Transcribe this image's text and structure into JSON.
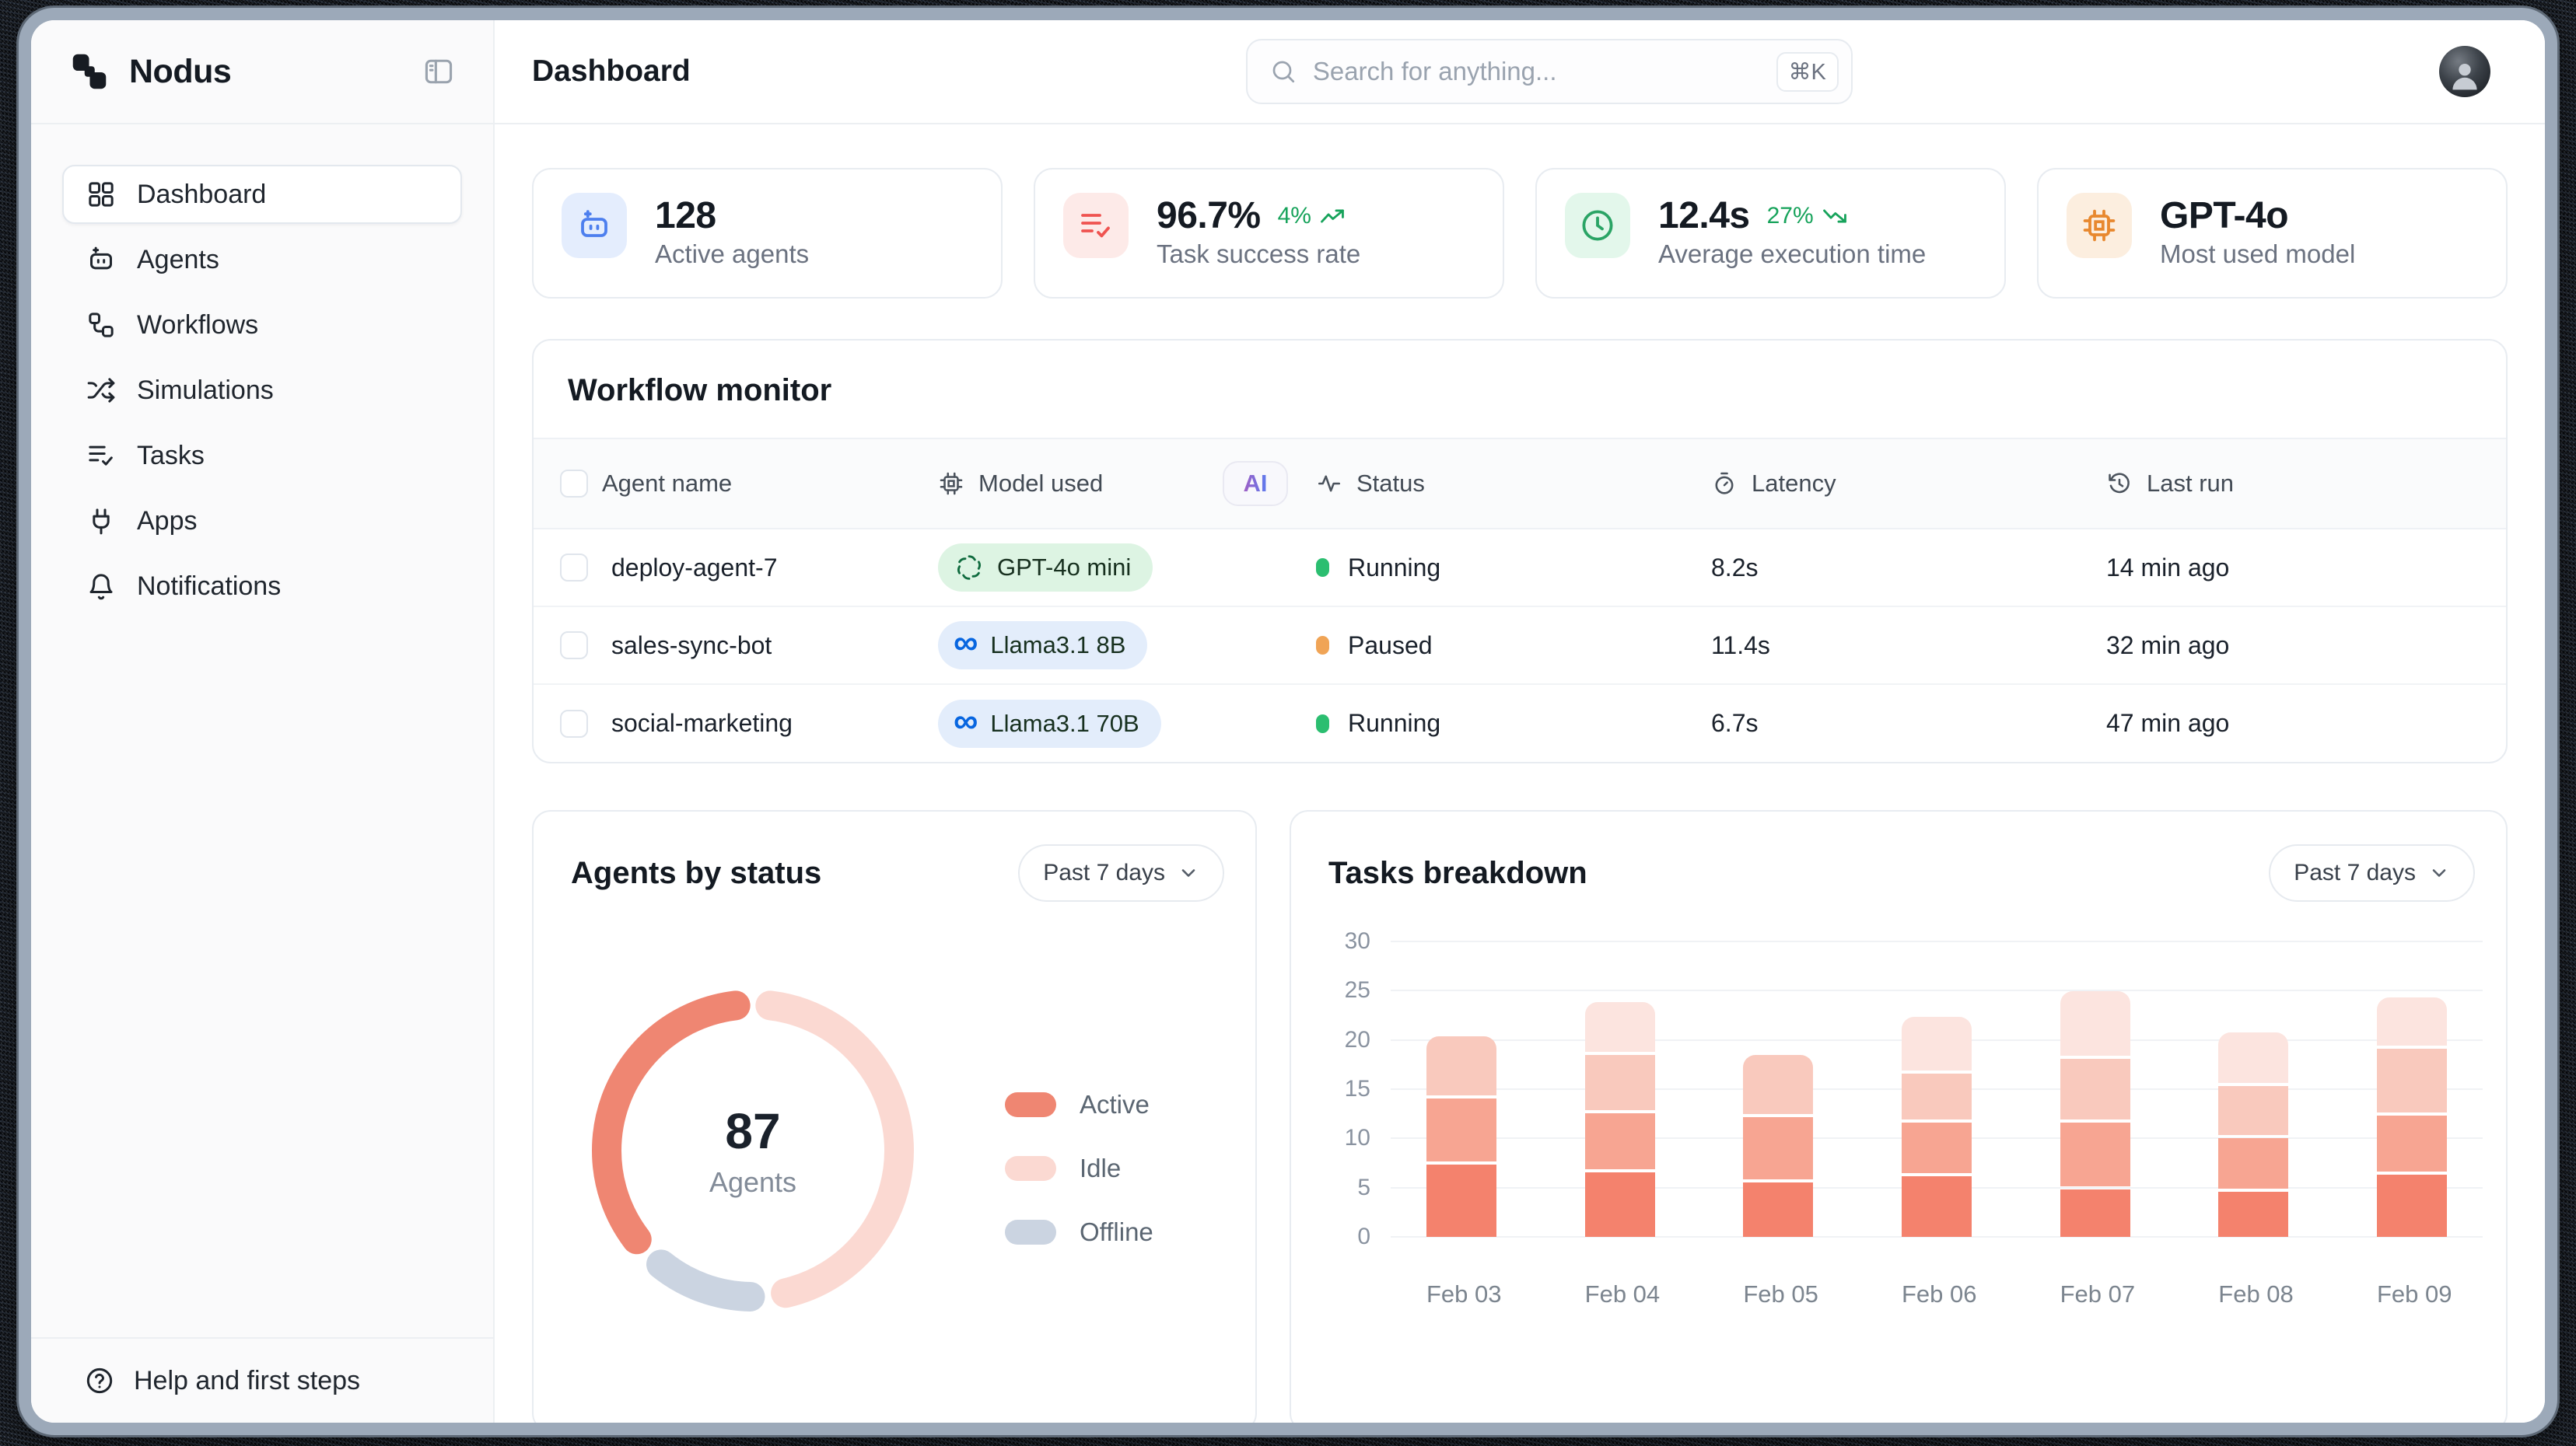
{
  "brand": {
    "name": "Nodus",
    "logo_icon": "nodus-logo-icon",
    "collapse_icon": "sidebar-toggle-icon"
  },
  "header": {
    "title": "Dashboard",
    "search": {
      "placeholder": "Search for anything...",
      "shortcut": "⌘K",
      "icon": "search-icon"
    },
    "avatar": "user-avatar"
  },
  "sidebar": {
    "items": [
      {
        "label": "Dashboard",
        "icon": "grid-icon",
        "active": true
      },
      {
        "label": "Agents",
        "icon": "bot-icon",
        "active": false
      },
      {
        "label": "Workflows",
        "icon": "workflow-nodes-icon",
        "active": false
      },
      {
        "label": "Simulations",
        "icon": "shuffle-icon",
        "active": false
      },
      {
        "label": "Tasks",
        "icon": "list-check-icon",
        "active": false
      },
      {
        "label": "Apps",
        "icon": "plug-icon",
        "active": false
      },
      {
        "label": "Notifications",
        "icon": "bell-icon",
        "active": false
      }
    ],
    "footer": {
      "label": "Help and first steps",
      "icon": "help-circle-icon"
    }
  },
  "stats": [
    {
      "value": "128",
      "label": "Active agents",
      "icon": "bot-icon",
      "tile_bg": "#E4EDFD",
      "icon_color": "#4D7FEE"
    },
    {
      "value": "96.7%",
      "label": "Task success rate",
      "trend": "4%",
      "trend_dir": "up",
      "trend_color": "#17A35B",
      "icon": "list-check-icon",
      "tile_bg": "#FDEAE8",
      "icon_color": "#EF5350"
    },
    {
      "value": "12.4s",
      "label": "Average execution time",
      "trend": "27%",
      "trend_dir": "down",
      "trend_color": "#17A35B",
      "icon": "clock-icon",
      "tile_bg": "#E3F7EB",
      "icon_color": "#2AA465"
    },
    {
      "value": "GPT-4o",
      "label": "Most used model",
      "icon": "cpu-icon",
      "tile_bg": "#FCEEDF",
      "icon_color": "#E8882E"
    }
  ],
  "workflow_monitor": {
    "title": "Workflow monitor",
    "ai_badge": "AI",
    "columns": [
      "Agent name",
      "Model used",
      "Status",
      "Latency",
      "Last run"
    ],
    "column_icons": [
      "checkbox",
      "cpu-icon",
      "activity-icon",
      "stopwatch-icon",
      "history-icon"
    ],
    "rows": [
      {
        "agent": "deploy-agent-7",
        "model": {
          "name": "GPT-4o mini",
          "provider": "openai",
          "badge_bg": "#DDF4E3",
          "logo_color": "#0F6B3E"
        },
        "status": {
          "label": "Running",
          "color": "#2BBE70"
        },
        "latency": "8.2s",
        "last_run": "14 min ago"
      },
      {
        "agent": "sales-sync-bot",
        "model": {
          "name": "Llama3.1 8B",
          "provider": "meta",
          "badge_bg": "#E3EDFB",
          "logo_color": "#0866E0"
        },
        "status": {
          "label": "Paused",
          "color": "#F0A456"
        },
        "latency": "11.4s",
        "last_run": "32 min ago"
      },
      {
        "agent": "social-marketing",
        "model": {
          "name": "Llama3.1 70B",
          "provider": "meta",
          "badge_bg": "#E3EDFB",
          "logo_color": "#0866E0"
        },
        "status": {
          "label": "Running",
          "color": "#2BBE70"
        },
        "latency": "6.7s",
        "last_run": "47 min ago"
      }
    ]
  },
  "agents_by_status": {
    "title": "Agents by status",
    "range_label": "Past 7 days",
    "chart_data": {
      "type": "donut",
      "center_value": "87",
      "center_label": "Agents",
      "gap_pct": 3.8,
      "segments": [
        {
          "label": "Active",
          "value_pct": 33.5,
          "start_pct": 64.6,
          "color": "#EF8672"
        },
        {
          "label": "Idle",
          "value_pct": 44.5,
          "start_pct": 1.9,
          "color": "#FBD9D2"
        },
        {
          "label": "Offline",
          "value_pct": 10.5,
          "start_pct": 50.3,
          "color": "#CBD4E1"
        }
      ]
    }
  },
  "tasks_breakdown": {
    "title": "Tasks breakdown",
    "range_label": "Past 7 days",
    "chart_data": {
      "type": "stacked_bar",
      "categories": [
        "Feb 03",
        "Feb 04",
        "Feb 05",
        "Feb 06",
        "Feb 07",
        "Feb 08",
        "Feb 09"
      ],
      "series": [
        {
          "name": "segment-1",
          "color": "#F4826D",
          "values": [
            7.5,
            6.7,
            5.7,
            6.3,
            5.0,
            4.7,
            6.5
          ]
        },
        {
          "name": "segment-2",
          "color": "#F7A592",
          "values": [
            6.7,
            6.0,
            6.6,
            5.5,
            6.8,
            5.5,
            6.0
          ]
        },
        {
          "name": "segment-3",
          "color": "#F9C9BD",
          "values": [
            6.3,
            5.9,
            6.3,
            4.9,
            6.4,
            5.3,
            6.8
          ]
        },
        {
          "name": "segment-4",
          "color": "#FCE4DF",
          "values": [
            0,
            5.4,
            0,
            5.8,
            6.9,
            5.4,
            5.2
          ]
        }
      ],
      "totals": [
        20.5,
        24.0,
        18.6,
        22.5,
        25.1,
        20.9,
        24.5
      ],
      "ylim": [
        0,
        30
      ],
      "yticks": [
        0,
        5,
        10,
        15,
        20,
        25,
        30
      ],
      "grid": true,
      "legend_position": "none"
    }
  }
}
